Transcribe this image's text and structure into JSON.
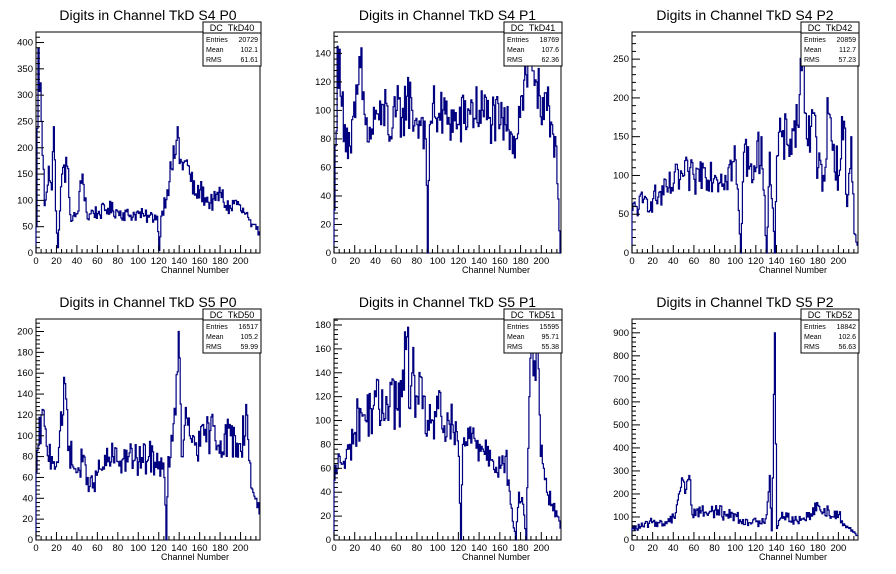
{
  "colors": {
    "line": "#000080",
    "axis": "#000000",
    "background": "#ffffff"
  },
  "chart_data": [
    {
      "type": "line",
      "title": "Digits in Channel TkD S4 P0",
      "xlabel": "Channel Number",
      "xlim": [
        0,
        219
      ],
      "ylim": [
        0,
        420
      ],
      "xticks": [
        0,
        20,
        40,
        60,
        80,
        100,
        120,
        140,
        160,
        180,
        200
      ],
      "yticks": [
        0,
        50,
        100,
        150,
        200,
        250,
        300,
        350,
        400
      ],
      "stats": {
        "name": "DC_TkD40",
        "entries_label": "Entries",
        "entries": "20729",
        "mean_label": "Mean",
        "mean": "102.1",
        "rms_label": "RMS",
        "rms": "61.61"
      },
      "anchors": [
        [
          0,
          50
        ],
        [
          2,
          390
        ],
        [
          5,
          250
        ],
        [
          8,
          90
        ],
        [
          12,
          165
        ],
        [
          15,
          120
        ],
        [
          17,
          240
        ],
        [
          19,
          80
        ],
        [
          21,
          10
        ],
        [
          23,
          80
        ],
        [
          25,
          150
        ],
        [
          30,
          165
        ],
        [
          34,
          60
        ],
        [
          40,
          75
        ],
        [
          45,
          150
        ],
        [
          50,
          65
        ],
        [
          55,
          80
        ],
        [
          60,
          75
        ],
        [
          70,
          85
        ],
        [
          80,
          78
        ],
        [
          90,
          72
        ],
        [
          100,
          75
        ],
        [
          105,
          70
        ],
        [
          110,
          68
        ],
        [
          118,
          70
        ],
        [
          120,
          5
        ],
        [
          122,
          70
        ],
        [
          128,
          120
        ],
        [
          132,
          160
        ],
        [
          135,
          180
        ],
        [
          138,
          240
        ],
        [
          140,
          170
        ],
        [
          145,
          175
        ],
        [
          150,
          150
        ],
        [
          155,
          110
        ],
        [
          160,
          120
        ],
        [
          165,
          105
        ],
        [
          170,
          95
        ],
        [
          175,
          100
        ],
        [
          180,
          115
        ],
        [
          185,
          90
        ],
        [
          190,
          85
        ],
        [
          195,
          100
        ],
        [
          200,
          80
        ],
        [
          205,
          75
        ],
        [
          210,
          50
        ],
        [
          215,
          45
        ],
        [
          218,
          40
        ]
      ],
      "jitter": 0.18
    },
    {
      "type": "line",
      "title": "Digits in Channel TkD S4 P1",
      "xlabel": "Channel Number",
      "xlim": [
        0,
        219
      ],
      "ylim": [
        0,
        155
      ],
      "xticks": [
        0,
        20,
        40,
        60,
        80,
        100,
        120,
        140,
        160,
        180,
        200
      ],
      "yticks": [
        0,
        20,
        40,
        60,
        80,
        100,
        120,
        140
      ],
      "stats": {
        "name": "DC_TkD41",
        "entries_label": "Entries",
        "entries": "18769",
        "mean_label": "Mean",
        "mean": "107.6",
        "rms_label": "RMS",
        "rms": "62.36"
      },
      "anchors": [
        [
          0,
          30
        ],
        [
          3,
          145
        ],
        [
          6,
          110
        ],
        [
          10,
          90
        ],
        [
          15,
          75
        ],
        [
          20,
          95
        ],
        [
          25,
          130
        ],
        [
          30,
          90
        ],
        [
          35,
          80
        ],
        [
          40,
          100
        ],
        [
          45,
          90
        ],
        [
          50,
          105
        ],
        [
          55,
          80
        ],
        [
          60,
          100
        ],
        [
          65,
          95
        ],
        [
          70,
          110
        ],
        [
          75,
          100
        ],
        [
          80,
          90
        ],
        [
          85,
          95
        ],
        [
          88,
          80
        ],
        [
          90,
          0
        ],
        [
          92,
          90
        ],
        [
          95,
          105
        ],
        [
          100,
          95
        ],
        [
          110,
          95
        ],
        [
          120,
          90
        ],
        [
          130,
          100
        ],
        [
          140,
          100
        ],
        [
          150,
          95
        ],
        [
          160,
          90
        ],
        [
          165,
          90
        ],
        [
          170,
          85
        ],
        [
          175,
          80
        ],
        [
          180,
          110
        ],
        [
          185,
          125
        ],
        [
          190,
          140
        ],
        [
          195,
          120
        ],
        [
          200,
          90
        ],
        [
          205,
          100
        ],
        [
          210,
          90
        ],
        [
          214,
          75
        ],
        [
          218,
          0
        ]
      ],
      "jitter": 0.2
    },
    {
      "type": "line",
      "title": "Digits in Channel TkD S4 P2",
      "xlabel": "Channel Number",
      "xlim": [
        0,
        219
      ],
      "ylim": [
        0,
        285
      ],
      "xticks": [
        0,
        20,
        40,
        60,
        80,
        100,
        120,
        140,
        160,
        180,
        200
      ],
      "yticks": [
        0,
        50,
        100,
        150,
        200,
        250
      ],
      "stats": {
        "name": "DC_TkD42",
        "entries_label": "Entries",
        "entries": "20859",
        "mean_label": "Mean",
        "mean": "112.7",
        "rms_label": "RMS",
        "rms": "57.23"
      },
      "anchors": [
        [
          0,
          55
        ],
        [
          10,
          65
        ],
        [
          20,
          70
        ],
        [
          30,
          75
        ],
        [
          40,
          90
        ],
        [
          50,
          100
        ],
        [
          60,
          95
        ],
        [
          70,
          110
        ],
        [
          80,
          100
        ],
        [
          90,
          100
        ],
        [
          100,
          120
        ],
        [
          105,
          0
        ],
        [
          108,
          130
        ],
        [
          115,
          115
        ],
        [
          120,
          110
        ],
        [
          125,
          150
        ],
        [
          130,
          0
        ],
        [
          133,
          130
        ],
        [
          138,
          0
        ],
        [
          140,
          125
        ],
        [
          145,
          150
        ],
        [
          150,
          140
        ],
        [
          155,
          160
        ],
        [
          160,
          165
        ],
        [
          165,
          270
        ],
        [
          168,
          180
        ],
        [
          172,
          130
        ],
        [
          175,
          180
        ],
        [
          180,
          110
        ],
        [
          185,
          100
        ],
        [
          190,
          180
        ],
        [
          195,
          140
        ],
        [
          200,
          100
        ],
        [
          205,
          170
        ],
        [
          208,
          60
        ],
        [
          212,
          150
        ],
        [
          215,
          25
        ],
        [
          218,
          10
        ]
      ],
      "jitter": 0.25
    },
    {
      "type": "line",
      "title": "Digits in Channel TkD S5 P0",
      "xlabel": "Channel Number",
      "xlim": [
        0,
        219
      ],
      "ylim": [
        0,
        212
      ],
      "xticks": [
        0,
        20,
        40,
        60,
        80,
        100,
        120,
        140,
        160,
        180,
        200
      ],
      "yticks": [
        0,
        20,
        40,
        60,
        80,
        100,
        120,
        140,
        160,
        180,
        200
      ],
      "stats": {
        "name": "DC_TkD50",
        "entries_label": "Entries",
        "entries": "16517",
        "mean_label": "Mean",
        "mean": "105.2",
        "rms_label": "RMS",
        "rms": "59.99"
      },
      "anchors": [
        [
          0,
          65
        ],
        [
          5,
          120
        ],
        [
          10,
          90
        ],
        [
          15,
          80
        ],
        [
          20,
          75
        ],
        [
          25,
          110
        ],
        [
          28,
          150
        ],
        [
          32,
          90
        ],
        [
          36,
          70
        ],
        [
          40,
          65
        ],
        [
          45,
          75
        ],
        [
          50,
          60
        ],
        [
          55,
          50
        ],
        [
          60,
          65
        ],
        [
          65,
          70
        ],
        [
          70,
          75
        ],
        [
          75,
          80
        ],
        [
          80,
          75
        ],
        [
          90,
          80
        ],
        [
          100,
          75
        ],
        [
          110,
          80
        ],
        [
          120,
          75
        ],
        [
          125,
          60
        ],
        [
          127,
          0
        ],
        [
          129,
          80
        ],
        [
          133,
          95
        ],
        [
          136,
          120
        ],
        [
          139,
          200
        ],
        [
          142,
          80
        ],
        [
          145,
          110
        ],
        [
          150,
          100
        ],
        [
          160,
          90
        ],
        [
          170,
          105
        ],
        [
          180,
          95
        ],
        [
          190,
          100
        ],
        [
          200,
          85
        ],
        [
          205,
          130
        ],
        [
          210,
          50
        ],
        [
          215,
          40
        ],
        [
          218,
          25
        ]
      ],
      "jitter": 0.2
    },
    {
      "type": "line",
      "title": "Digits in Channel TkD S5 P1",
      "xlabel": "Channel Number",
      "xlim": [
        0,
        219
      ],
      "ylim": [
        0,
        185
      ],
      "xticks": [
        0,
        20,
        40,
        60,
        80,
        100,
        120,
        140,
        160,
        180,
        200
      ],
      "yticks": [
        0,
        20,
        40,
        60,
        80,
        100,
        120,
        140,
        160,
        180
      ],
      "stats": {
        "name": "DC_TkD51",
        "entries_label": "Entries",
        "entries": "15595",
        "mean_label": "Mean",
        "mean": "95.71",
        "rms_label": "RMS",
        "rms": "55.38"
      },
      "anchors": [
        [
          0,
          50
        ],
        [
          5,
          70
        ],
        [
          10,
          60
        ],
        [
          15,
          80
        ],
        [
          20,
          90
        ],
        [
          25,
          110
        ],
        [
          30,
          100
        ],
        [
          35,
          110
        ],
        [
          40,
          120
        ],
        [
          45,
          100
        ],
        [
          50,
          120
        ],
        [
          55,
          130
        ],
        [
          60,
          110
        ],
        [
          65,
          120
        ],
        [
          70,
          170
        ],
        [
          73,
          110
        ],
        [
          75,
          140
        ],
        [
          80,
          120
        ],
        [
          85,
          110
        ],
        [
          90,
          100
        ],
        [
          95,
          100
        ],
        [
          100,
          110
        ],
        [
          105,
          90
        ],
        [
          110,
          100
        ],
        [
          115,
          90
        ],
        [
          120,
          70
        ],
        [
          122,
          0
        ],
        [
          124,
          80
        ],
        [
          130,
          85
        ],
        [
          140,
          80
        ],
        [
          150,
          75
        ],
        [
          160,
          60
        ],
        [
          165,
          70
        ],
        [
          170,
          30
        ],
        [
          175,
          0
        ],
        [
          178,
          40
        ],
        [
          182,
          30
        ],
        [
          185,
          0
        ],
        [
          188,
          120
        ],
        [
          190,
          175
        ],
        [
          193,
          150
        ],
        [
          196,
          180
        ],
        [
          199,
          70
        ],
        [
          202,
          60
        ],
        [
          205,
          40
        ],
        [
          210,
          30
        ],
        [
          215,
          20
        ],
        [
          218,
          10
        ]
      ],
      "jitter": 0.22
    },
    {
      "type": "line",
      "title": "Digits in Channel TkD S5 P2",
      "xlabel": "Channel Number",
      "xlim": [
        0,
        219
      ],
      "ylim": [
        0,
        960
      ],
      "xticks": [
        0,
        20,
        40,
        60,
        80,
        100,
        120,
        140,
        160,
        180,
        200
      ],
      "yticks": [
        0,
        100,
        200,
        300,
        400,
        500,
        600,
        700,
        800,
        900
      ],
      "stats": {
        "name": "DC_TkD52",
        "entries_label": "Entries",
        "entries": "18842",
        "mean_label": "Mean",
        "mean": "102.6",
        "rms_label": "RMS",
        "rms": "56.63"
      },
      "anchors": [
        [
          0,
          50
        ],
        [
          10,
          60
        ],
        [
          20,
          80
        ],
        [
          30,
          70
        ],
        [
          40,
          100
        ],
        [
          45,
          200
        ],
        [
          48,
          270
        ],
        [
          52,
          220
        ],
        [
          55,
          280
        ],
        [
          58,
          110
        ],
        [
          62,
          130
        ],
        [
          70,
          120
        ],
        [
          80,
          130
        ],
        [
          90,
          110
        ],
        [
          100,
          110
        ],
        [
          105,
          80
        ],
        [
          110,
          90
        ],
        [
          115,
          70
        ],
        [
          120,
          80
        ],
        [
          125,
          70
        ],
        [
          130,
          110
        ],
        [
          133,
          280
        ],
        [
          135,
          40
        ],
        [
          138,
          900
        ],
        [
          140,
          50
        ],
        [
          145,
          120
        ],
        [
          150,
          100
        ],
        [
          160,
          80
        ],
        [
          170,
          100
        ],
        [
          175,
          140
        ],
        [
          180,
          150
        ],
        [
          185,
          120
        ],
        [
          190,
          130
        ],
        [
          195,
          100
        ],
        [
          200,
          110
        ],
        [
          205,
          70
        ],
        [
          210,
          50
        ],
        [
          215,
          35
        ],
        [
          218,
          20
        ]
      ],
      "jitter": 0.25
    }
  ]
}
